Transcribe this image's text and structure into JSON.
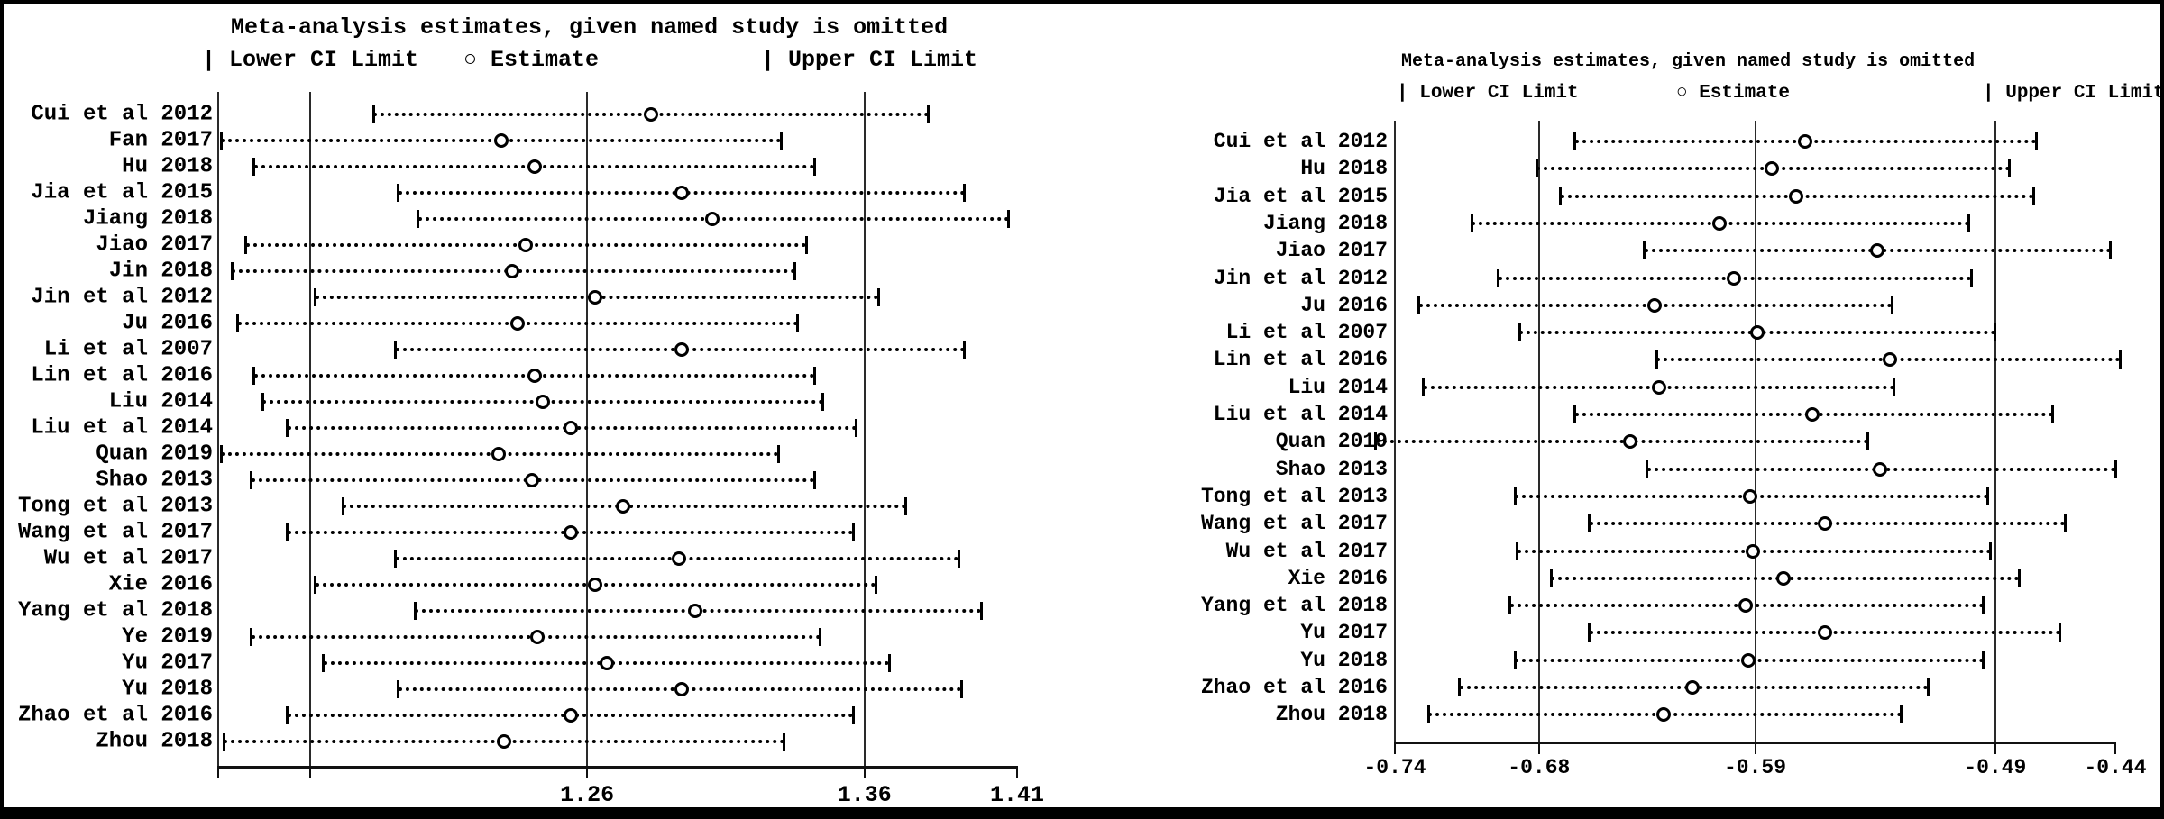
{
  "chart_data": [
    {
      "type": "scatter",
      "variant": "leave-one-out-sensitivity-forest",
      "panel": "left",
      "title": "Meta-analysis estimates, given named study is omitted",
      "legend": [
        {
          "glyph": "|",
          "label": "Lower CI Limit"
        },
        {
          "glyph": "○",
          "label": "Estimate"
        },
        {
          "glyph": "|",
          "label": "Upper CI Limit"
        }
      ],
      "axis": {
        "xlim": [
          1.127,
          1.415
        ],
        "gridline_values": [
          1.127,
          1.16,
          1.26,
          1.36
        ],
        "ticks": [
          {
            "value": 1.127,
            "label": ""
          },
          {
            "value": 1.16,
            "label": ""
          },
          {
            "value": 1.26,
            "label": "1.26"
          },
          {
            "value": 1.36,
            "label": "1.36"
          },
          {
            "value": 1.415,
            "label": "1.41"
          }
        ]
      },
      "studies": [
        {
          "label": "Cui et al 2012",
          "lower": 1.183,
          "estimate": 1.283,
          "upper": 1.383
        },
        {
          "label": "Fan 2017",
          "lower": 1.128,
          "estimate": 1.229,
          "upper": 1.33
        },
        {
          "label": "Hu 2018",
          "lower": 1.14,
          "estimate": 1.241,
          "upper": 1.342
        },
        {
          "label": "Jia et al 2015",
          "lower": 1.192,
          "estimate": 1.294,
          "upper": 1.396
        },
        {
          "label": "Jiang  2018",
          "lower": 1.199,
          "estimate": 1.305,
          "upper": 1.412
        },
        {
          "label": "Jiao 2017",
          "lower": 1.137,
          "estimate": 1.238,
          "upper": 1.339
        },
        {
          "label": "Jin 2018",
          "lower": 1.132,
          "estimate": 1.233,
          "upper": 1.335
        },
        {
          "label": "Jin et al 2012",
          "lower": 1.162,
          "estimate": 1.263,
          "upper": 1.365
        },
        {
          "label": "Ju 2016",
          "lower": 1.134,
          "estimate": 1.235,
          "upper": 1.336
        },
        {
          "label": "Li et al 2007",
          "lower": 1.191,
          "estimate": 1.294,
          "upper": 1.396
        },
        {
          "label": "Lin et al 2016",
          "lower": 1.14,
          "estimate": 1.241,
          "upper": 1.342
        },
        {
          "label": "Liu 2014",
          "lower": 1.143,
          "estimate": 1.244,
          "upper": 1.345
        },
        {
          "label": "Liu et al 2014",
          "lower": 1.152,
          "estimate": 1.254,
          "upper": 1.357
        },
        {
          "label": "Quan 2019",
          "lower": 1.128,
          "estimate": 1.228,
          "upper": 1.329
        },
        {
          "label": "Shao 2013",
          "lower": 1.139,
          "estimate": 1.24,
          "upper": 1.342
        },
        {
          "label": "Tong et al 2013",
          "lower": 1.172,
          "estimate": 1.273,
          "upper": 1.375
        },
        {
          "label": "Wang et al 2017",
          "lower": 1.152,
          "estimate": 1.254,
          "upper": 1.356
        },
        {
          "label": "Wu et al 2017",
          "lower": 1.191,
          "estimate": 1.293,
          "upper": 1.394
        },
        {
          "label": "Xie 2016",
          "lower": 1.162,
          "estimate": 1.263,
          "upper": 1.364
        },
        {
          "label": "Yang et al 2018",
          "lower": 1.198,
          "estimate": 1.299,
          "upper": 1.402
        },
        {
          "label": "Ye 2019",
          "lower": 1.139,
          "estimate": 1.242,
          "upper": 1.344
        },
        {
          "label": "Yu 2017",
          "lower": 1.165,
          "estimate": 1.267,
          "upper": 1.369
        },
        {
          "label": "Yu 2018",
          "lower": 1.192,
          "estimate": 1.294,
          "upper": 1.395
        },
        {
          "label": "Zhao et al 2016",
          "lower": 1.152,
          "estimate": 1.254,
          "upper": 1.356
        },
        {
          "label": "Zhou 2018",
          "lower": 1.129,
          "estimate": 1.23,
          "upper": 1.331
        }
      ]
    },
    {
      "type": "scatter",
      "variant": "leave-one-out-sensitivity-forest",
      "panel": "right",
      "title": "Meta-analysis estimates, given named study is omitted",
      "legend": [
        {
          "glyph": "|",
          "label": "Lower CI Limit"
        },
        {
          "glyph": "○",
          "label": "Estimate"
        },
        {
          "glyph": "|",
          "label": "Upper CI Limit"
        }
      ],
      "axis": {
        "xlim": [
          -0.74,
          -0.44
        ],
        "gridline_values": [
          -0.74,
          -0.68,
          -0.59,
          -0.49
        ],
        "ticks": [
          {
            "value": -0.74,
            "label": "-0.74"
          },
          {
            "value": -0.68,
            "label": "-0.68"
          },
          {
            "value": -0.59,
            "label": "-0.59"
          },
          {
            "value": -0.49,
            "label": "-0.49"
          },
          {
            "value": -0.44,
            "label": "-0.44"
          }
        ]
      },
      "studies": [
        {
          "label": "Cui et al 2012",
          "lower": -0.665,
          "estimate": -0.569,
          "upper": -0.473
        },
        {
          "label": "Hu 2018",
          "lower": -0.681,
          "estimate": -0.583,
          "upper": -0.484
        },
        {
          "label": "Jia et al 2015",
          "lower": -0.671,
          "estimate": -0.573,
          "upper": -0.474
        },
        {
          "label": "Jiang  2018",
          "lower": -0.708,
          "estimate": -0.605,
          "upper": -0.501
        },
        {
          "label": "Jiao 2017",
          "lower": -0.636,
          "estimate": -0.539,
          "upper": -0.442
        },
        {
          "label": "Jin et al 2012",
          "lower": -0.697,
          "estimate": -0.599,
          "upper": -0.5
        },
        {
          "label": "Ju 2016",
          "lower": -0.73,
          "estimate": -0.632,
          "upper": -0.533
        },
        {
          "label": "Li et al 2007",
          "lower": -0.688,
          "estimate": -0.589,
          "upper": -0.49
        },
        {
          "label": "Lin et al 2016",
          "lower": -0.631,
          "estimate": -0.534,
          "upper": -0.438
        },
        {
          "label": "Liu 2014",
          "lower": -0.728,
          "estimate": -0.63,
          "upper": -0.532
        },
        {
          "label": "Liu et al 2014",
          "lower": -0.665,
          "estimate": -0.566,
          "upper": -0.466
        },
        {
          "label": "Quan 2019",
          "lower": -0.748,
          "estimate": -0.642,
          "upper": -0.543
        },
        {
          "label": "Shao 2013",
          "lower": -0.635,
          "estimate": -0.538,
          "upper": -0.44
        },
        {
          "label": "Tong et al 2013",
          "lower": -0.69,
          "estimate": -0.592,
          "upper": -0.493
        },
        {
          "label": "Wang et al 2017",
          "lower": -0.659,
          "estimate": -0.561,
          "upper": -0.461
        },
        {
          "label": "Wu et al 2017",
          "lower": -0.689,
          "estimate": -0.591,
          "upper": -0.492
        },
        {
          "label": "Xie 2016",
          "lower": -0.675,
          "estimate": -0.578,
          "upper": -0.48
        },
        {
          "label": "Yang et al 2018",
          "lower": -0.692,
          "estimate": -0.594,
          "upper": -0.495
        },
        {
          "label": "Yu 2017",
          "lower": -0.659,
          "estimate": -0.561,
          "upper": -0.463
        },
        {
          "label": "Yu 2018",
          "lower": -0.69,
          "estimate": -0.593,
          "upper": -0.495
        },
        {
          "label": "Zhao et al 2016",
          "lower": -0.713,
          "estimate": -0.616,
          "upper": -0.518
        },
        {
          "label": "Zhou 2018",
          "lower": -0.726,
          "estimate": -0.628,
          "upper": -0.529
        }
      ]
    }
  ]
}
